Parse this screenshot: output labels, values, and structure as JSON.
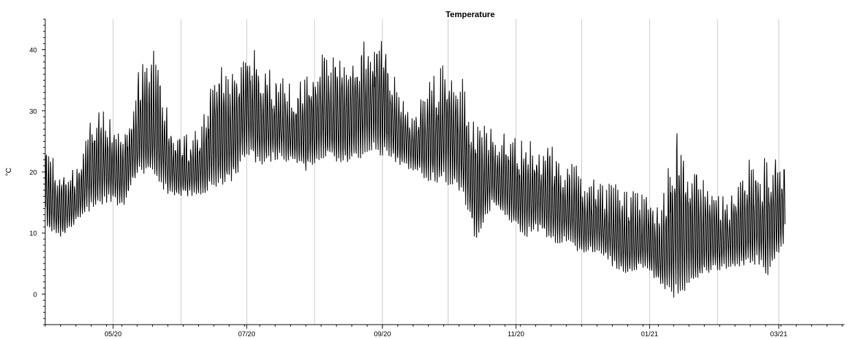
{
  "chart_data": {
    "type": "line",
    "title": "Temperature",
    "xlabel": "",
    "ylabel": "°C",
    "xlim": [
      "2020-03-31",
      "2021-03-31"
    ],
    "ylim": [
      -5,
      45
    ],
    "y_ticks": [
      0,
      10,
      20,
      30,
      40
    ],
    "x_ticks": [
      {
        "date": "2020-05-01",
        "label": "05/20"
      },
      {
        "date": "2020-07-01",
        "label": "07/20"
      },
      {
        "date": "2020-09-01",
        "label": "09/20"
      },
      {
        "date": "2020-11-01",
        "label": "11/20"
      },
      {
        "date": "2021-01-01",
        "label": "01/21"
      },
      {
        "date": "2021-03-01",
        "label": "03/21"
      }
    ],
    "gridlines_x": [
      "2020-05-01",
      "2020-06-01",
      "2020-07-01",
      "2020-08-01",
      "2020-09-01",
      "2020-10-01",
      "2020-11-01",
      "2020-12-01",
      "2021-01-01",
      "2021-02-01",
      "2021-03-01"
    ],
    "grid": "vertical",
    "legend": "none",
    "line_color": "#000000",
    "series": [
      {
        "x": [
          "2020-04-01",
          "2020-04-08",
          "2020-04-15",
          "2020-04-22",
          "2020-04-29",
          "2020-05-06",
          "2020-05-13",
          "2020-05-20",
          "2020-05-27",
          "2020-06-03",
          "2020-06-10",
          "2020-06-17",
          "2020-06-24",
          "2020-07-01",
          "2020-07-08",
          "2020-07-15",
          "2020-07-22",
          "2020-07-29",
          "2020-08-05",
          "2020-08-12",
          "2020-08-19",
          "2020-08-26",
          "2020-09-02",
          "2020-09-09",
          "2020-09-16",
          "2020-09-23",
          "2020-09-30",
          "2020-10-07",
          "2020-10-14",
          "2020-10-21",
          "2020-10-28",
          "2020-11-04",
          "2020-11-11",
          "2020-11-18",
          "2020-11-25",
          "2020-12-02",
          "2020-12-09",
          "2020-12-16",
          "2020-12-23",
          "2020-12-30",
          "2021-01-06",
          "2021-01-13",
          "2021-01-20",
          "2021-01-27",
          "2021-02-03",
          "2021-02-10",
          "2021-02-17",
          "2021-02-24",
          "2021-03-03"
        ],
        "min": [
          10,
          9,
          12,
          14,
          15,
          14,
          20,
          18,
          16,
          16,
          16,
          17,
          18,
          22,
          21,
          22,
          21,
          20,
          22,
          21,
          21,
          23,
          22,
          21,
          20,
          18,
          18,
          16,
          8,
          14,
          12,
          9,
          10,
          8,
          8,
          6,
          7,
          4,
          3,
          4,
          1,
          -1,
          1,
          3,
          4,
          4,
          5,
          3,
          8
        ],
        "max": [
          24,
          20,
          21,
          30,
          30,
          27,
          37,
          40,
          28,
          26,
          27,
          38,
          36,
          42,
          38,
          36,
          34,
          36,
          40,
          38,
          40,
          42,
          42,
          32,
          30,
          35,
          38,
          36,
          28,
          27,
          26,
          25,
          25,
          24,
          22,
          20,
          18,
          18,
          17,
          16,
          14,
          27,
          22,
          18,
          16,
          18,
          23,
          22,
          22
        ]
      }
    ]
  }
}
